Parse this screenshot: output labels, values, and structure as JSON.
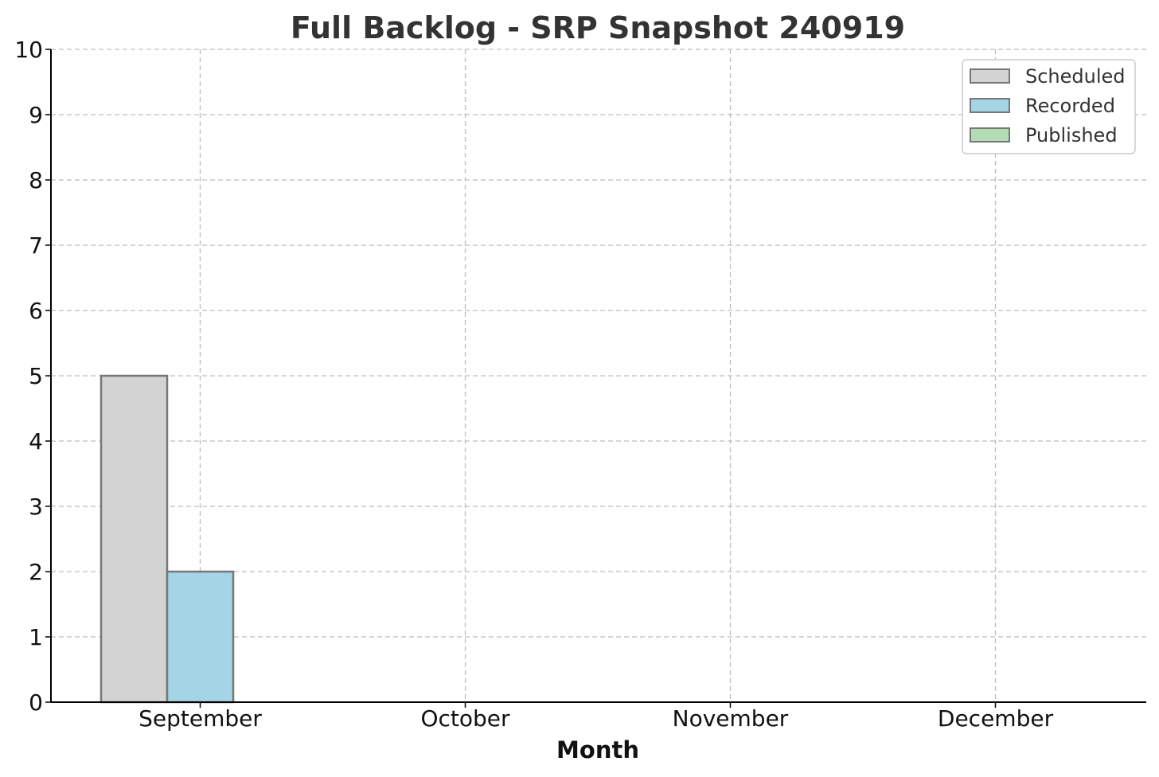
{
  "chart_data": {
    "type": "bar",
    "title": "Full Backlog - SRP Snapshot 240919",
    "xlabel": "Month",
    "ylabel": "",
    "categories": [
      "September",
      "October",
      "November",
      "December"
    ],
    "series": [
      {
        "name": "Scheduled",
        "values": [
          5,
          0,
          0,
          0
        ],
        "color": "#d3d3d3"
      },
      {
        "name": "Recorded",
        "values": [
          2,
          0,
          0,
          0
        ],
        "color": "#a3d5e6"
      },
      {
        "name": "Published",
        "values": [
          0,
          0,
          0,
          0
        ],
        "color": "#b3dcb5"
      }
    ],
    "ylim": [
      0,
      10
    ],
    "yticks": [
      "0",
      "1",
      "2",
      "3",
      "4",
      "5",
      "6",
      "7",
      "8",
      "9",
      "10"
    ],
    "grid": true,
    "legend": "top-right",
    "bar_edge_color": "#777777"
  }
}
